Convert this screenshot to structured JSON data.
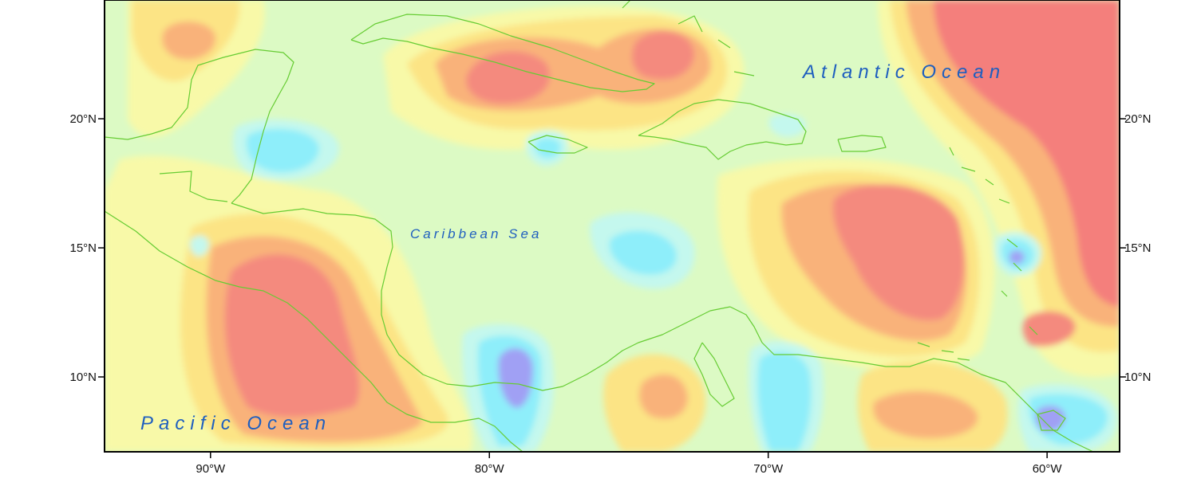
{
  "map": {
    "extent": {
      "lon_min": -93.8,
      "lon_max": -57.4,
      "lat_min": 7.1,
      "lat_max": 24.6
    },
    "background_color": "#dcfac4",
    "coastline_color": "#66cc33",
    "contour_palette": {
      "strong_negative": "#a0a0f4",
      "negative": "#8eeefa",
      "weak_negative": "#c4f8ee",
      "neutral": "#dcfac4",
      "weak_positive": "#f8f9a8",
      "positive": "#fce485",
      "moderate_positive": "#f9b27a",
      "strong_positive": "#f48a7e",
      "max_positive": "#f47f7b"
    },
    "x_axis": {
      "ticks": [
        {
          "lon": -90,
          "label": "90°W"
        },
        {
          "lon": -80,
          "label": "80°W"
        },
        {
          "lon": -70,
          "label": "70°W"
        },
        {
          "lon": -60,
          "label": "60°W"
        }
      ]
    },
    "y_axis": {
      "ticks": [
        {
          "lat": 20,
          "label": "20°N"
        },
        {
          "lat": 15,
          "label": "15°N"
        },
        {
          "lat": 10,
          "label": "10°N"
        }
      ]
    },
    "labels": {
      "atlantic": "Atlantic Ocean",
      "caribbean": "Caribbean Sea",
      "pacific": "Pacific Ocean"
    }
  }
}
